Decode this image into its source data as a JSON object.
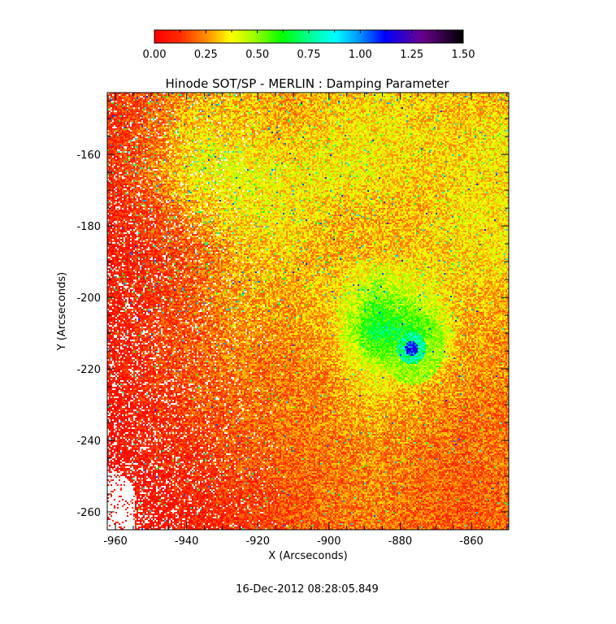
{
  "chart_data": {
    "type": "heatmap",
    "title": "Hinode SOT/SP - MERLIN : Damping Parameter",
    "xlabel": "X (Arcseconds)",
    "ylabel": "Y (Arcseconds)",
    "footer": "16-Dec-2012 08:28:05.849",
    "xlim": [
      -962.3,
      -849.5
    ],
    "ylim": [
      -265,
      -142.7
    ],
    "xticks": [
      "-960",
      "-940",
      "-920",
      "-900",
      "-880",
      "-860"
    ],
    "xtick_values": [
      -960,
      -940,
      -920,
      -900,
      -880,
      -860
    ],
    "yticks": [
      "-160",
      "-180",
      "-200",
      "-220",
      "-240",
      "-260"
    ],
    "ytick_values": [
      -160,
      -180,
      -200,
      -220,
      -240,
      -260
    ],
    "minor_tick_step": 5,
    "colorbar": {
      "range": [
        0,
        1.5
      ],
      "ticks": [
        "0.00",
        "0.25",
        "0.50",
        "0.75",
        "1.00",
        "1.25",
        "1.50"
      ],
      "colormap": [
        {
          "v": 0.0,
          "c": "#ff0000"
        },
        {
          "v": 0.12,
          "c": "#ff2a00"
        },
        {
          "v": 0.25,
          "c": "#ff8c00"
        },
        {
          "v": 0.37,
          "c": "#ffff00"
        },
        {
          "v": 0.5,
          "c": "#90ff00"
        },
        {
          "v": 0.62,
          "c": "#00ff00"
        },
        {
          "v": 0.75,
          "c": "#00ff90"
        },
        {
          "v": 0.88,
          "c": "#00ffff"
        },
        {
          "v": 1.0,
          "c": "#0090ff"
        },
        {
          "v": 1.12,
          "c": "#0000ff"
        },
        {
          "v": 1.3,
          "c": "#6a0090"
        },
        {
          "v": 1.5,
          "c": "#000000"
        }
      ]
    },
    "grid_note": "coarse approximate damping values, rows top(-143) to bottom(-265), cols left(-962) to right(-850); null = no data",
    "grid": [
      [
        0.12,
        0.18,
        0.28,
        0.3,
        0.26,
        0.3,
        0.34,
        0.32,
        0.3,
        0.28
      ],
      [
        0.1,
        0.2,
        0.35,
        0.32,
        0.3,
        0.34,
        0.36,
        0.34,
        0.32,
        0.38
      ],
      [
        0.1,
        0.22,
        0.38,
        0.4,
        0.36,
        0.38,
        0.36,
        0.32,
        0.34,
        0.36
      ],
      [
        0.08,
        0.15,
        0.28,
        0.36,
        0.36,
        0.3,
        0.3,
        0.3,
        0.36,
        0.34
      ],
      [
        0.06,
        0.12,
        0.18,
        0.3,
        0.32,
        0.28,
        0.3,
        0.32,
        0.34,
        0.36
      ],
      [
        0.06,
        0.12,
        0.2,
        0.28,
        0.28,
        0.32,
        0.5,
        0.4,
        0.3,
        0.3
      ],
      [
        0.05,
        0.14,
        0.18,
        0.26,
        0.24,
        0.3,
        0.7,
        0.6,
        0.28,
        0.26
      ],
      [
        0.05,
        0.12,
        0.18,
        0.22,
        0.22,
        0.26,
        0.4,
        0.32,
        0.26,
        0.24
      ],
      [
        0.04,
        0.1,
        0.16,
        0.2,
        0.22,
        0.24,
        0.3,
        0.26,
        0.22,
        0.22
      ],
      [
        0.03,
        0.1,
        0.12,
        0.18,
        0.2,
        0.22,
        0.24,
        0.22,
        0.2,
        0.22
      ],
      [
        null,
        0.06,
        0.1,
        0.14,
        0.18,
        0.22,
        0.24,
        0.2,
        0.18,
        0.2
      ],
      [
        null,
        0.04,
        0.08,
        0.12,
        0.16,
        0.2,
        0.22,
        0.2,
        0.18,
        0.2
      ]
    ],
    "features": [
      {
        "label": "",
        "x": -877,
        "y": -214,
        "value": 1.1
      }
    ]
  }
}
